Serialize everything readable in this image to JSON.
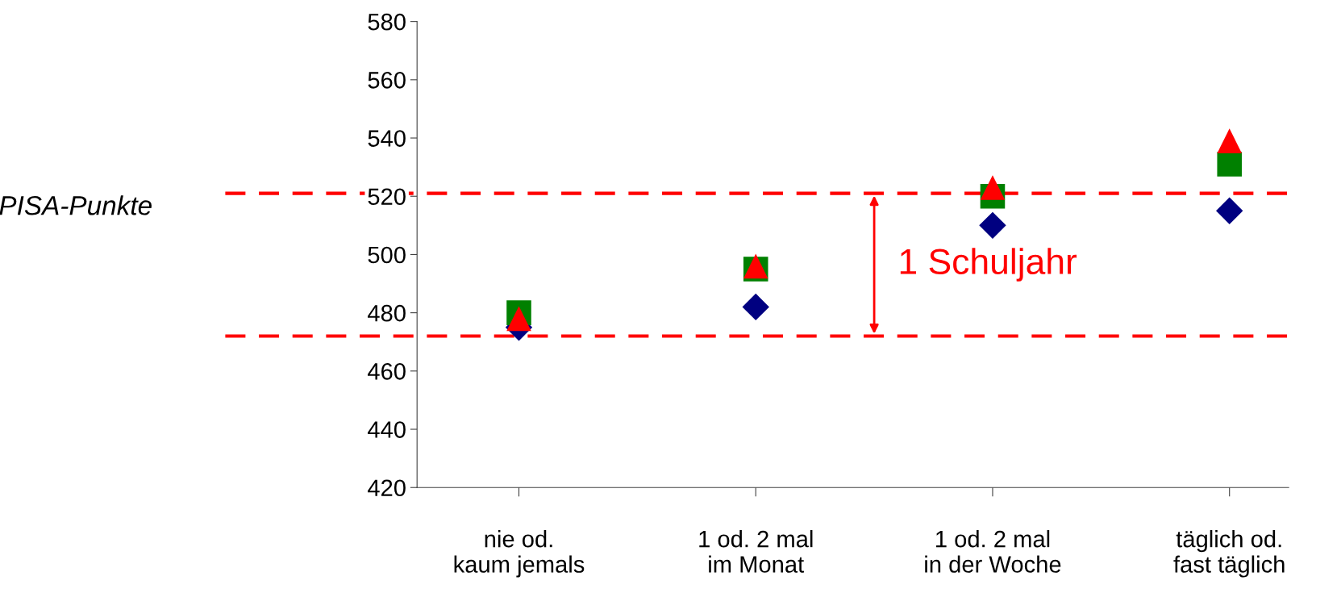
{
  "chart_data": {
    "type": "scatter",
    "ylabel": "PISA-Punkte",
    "categories": [
      "nie od.\nkaum jemals",
      "1 od. 2 mal\nim Monat",
      "1 od. 2 mal\nin der Woche",
      "täglich od.\nfast täglich"
    ],
    "series": [
      {
        "color": "#000080",
        "marker": "diamond",
        "values": [
          475,
          482,
          510,
          515
        ]
      },
      {
        "color": "#008000",
        "marker": "square",
        "values": [
          480,
          495,
          520,
          531
        ]
      },
      {
        "color": "#ff0000",
        "marker": "triangle",
        "values": [
          478,
          496,
          523,
          539
        ]
      }
    ],
    "ylim": [
      420,
      580
    ],
    "yticks": [
      420,
      440,
      460,
      480,
      500,
      520,
      540,
      560,
      580
    ],
    "grid": false,
    "ref_lines": [
      {
        "axis": "y",
        "value": 521,
        "color": "#ff0000",
        "line_style": "dashed"
      },
      {
        "axis": "y",
        "value": 472,
        "color": "#ff0000",
        "line_style": "dashed"
      }
    ],
    "annotations": [
      "1 Schuljahr"
    ]
  }
}
